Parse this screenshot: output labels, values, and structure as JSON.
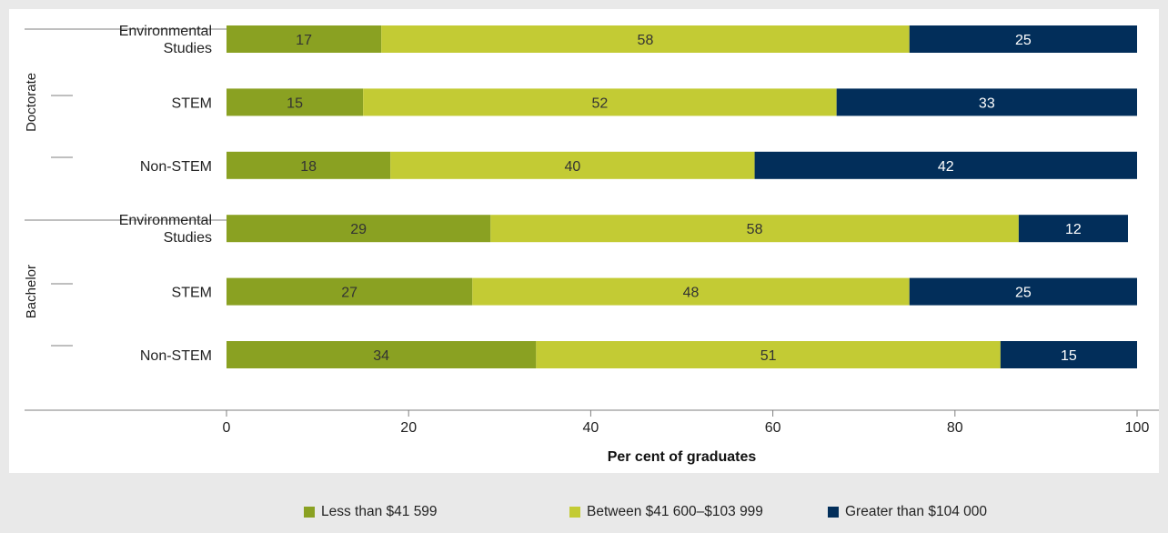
{
  "chart_data": {
    "type": "bar",
    "orientation": "horizontal",
    "stacked": true,
    "title": "",
    "xlabel": "Per cent of graduates",
    "ylabel": "",
    "xlim": [
      0,
      100
    ],
    "xticks": [
      0,
      20,
      40,
      60,
      80,
      100
    ],
    "grid": false,
    "legend_position": "bottom",
    "groups": [
      {
        "label": "Doctorate",
        "categories": [
          "Environmental Studies",
          "STEM",
          "Non-STEM"
        ]
      },
      {
        "label": "Bachelor",
        "categories": [
          "Environmental Studies",
          "STEM",
          "Non-STEM"
        ]
      }
    ],
    "categories": [
      "Environmental Studies",
      "STEM",
      "Non-STEM",
      "Environmental Studies",
      "STEM",
      "Non-STEM"
    ],
    "category_bold": [
      true,
      false,
      false,
      true,
      false,
      false
    ],
    "series": [
      {
        "name": "Less than $41 599",
        "color": "#8aa122",
        "label_color": "#333333",
        "values": [
          17,
          15,
          18,
          29,
          27,
          34
        ]
      },
      {
        "name": "Between $41 600–$103 999",
        "color": "#c3cb34",
        "label_color": "#333333",
        "values": [
          58,
          52,
          40,
          58,
          48,
          51
        ]
      },
      {
        "name": "Greater than $104 000",
        "color": "#022e5a",
        "label_color": "#ffffff",
        "values": [
          25,
          33,
          42,
          12,
          25,
          15
        ]
      }
    ]
  }
}
